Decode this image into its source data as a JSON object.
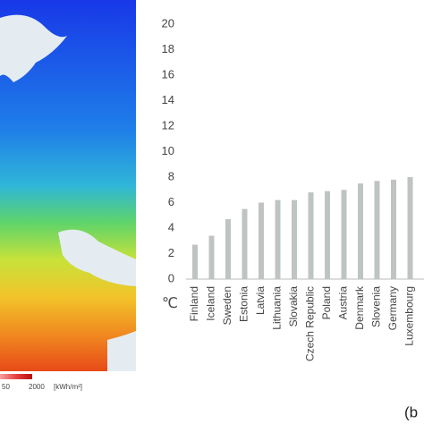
{
  "chart_data": {
    "type": "bar",
    "y_label": "℃",
    "panel_label": "(b",
    "categories": [
      "Finland",
      "Iceland",
      "Sweden",
      "Estonia",
      "Latvia",
      "Lithuania",
      "Slovakia",
      "Czech Republic",
      "Poland",
      "Austria",
      "Denmark",
      "Slovenia",
      "Germany",
      "Luxembourg"
    ],
    "values": [
      2.7,
      3.4,
      4.7,
      5.5,
      6.0,
      6.2,
      6.2,
      6.8,
      6.9,
      7.0,
      7.5,
      7.7,
      7.8,
      8.0
    ],
    "color": "#bfc4c0",
    "ylim": [
      0,
      20
    ],
    "yticks": [
      0,
      2,
      4,
      6,
      8,
      10,
      12,
      14,
      16,
      18,
      20
    ],
    "grid": false
  },
  "map": {
    "legend_labels": [
      "50",
      "2000",
      "[kWh/m²]"
    ]
  }
}
